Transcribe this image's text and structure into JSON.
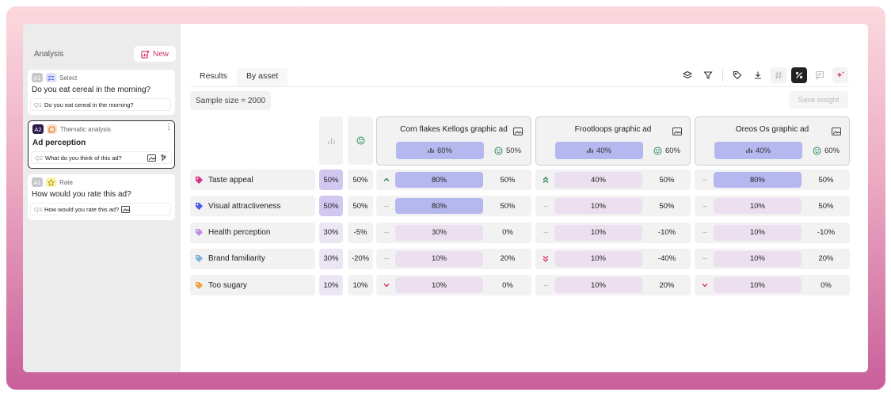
{
  "colors": {
    "accent": "#d6336c",
    "bar_high": "#b5b7ef",
    "bar_low": "#ece0f0",
    "base_high": "#d2c8ef",
    "base_low": "#ece5f3",
    "trend_up": "#2e8b57",
    "trend_down": "#d6336c"
  },
  "sidebar": {
    "title": "Analysis",
    "new_label": "New",
    "cards": [
      {
        "tag": "A1",
        "type": "Select",
        "question": "Do you eat cereal in the morning?",
        "q_num": "Q1",
        "sub": "Do you eat cereal in the morning?"
      },
      {
        "tag": "A2",
        "type": "Thematic analysis",
        "question": "Ad perception",
        "q_num": "Q2",
        "sub": "What do you think of this ad?"
      },
      {
        "tag": "A1",
        "type": "Rate",
        "question": "How would you rate this ad?",
        "q_num": "Q3",
        "sub": "How would you rate this ad?"
      }
    ]
  },
  "tabs": [
    "Results",
    "By asset"
  ],
  "active_tab": "By asset",
  "sample_size": "Sample size = 2000",
  "save_insight": "Save insight",
  "toolbar_icons": [
    "layers-icon",
    "filter-icon",
    "tag-icon",
    "download-icon",
    "hash-icon",
    "percent-icon",
    "comment-icon",
    "sparkle-icon"
  ],
  "assets": [
    {
      "name": "Corn flakes Kellogs graphic ad",
      "share": "60%",
      "sentiment": "50%"
    },
    {
      "name": "Frootloops graphic ad",
      "share": "40%",
      "sentiment": "60%"
    },
    {
      "name": "Oreos Os graphic ad",
      "share": "40%",
      "sentiment": "60%"
    }
  ],
  "rows": [
    {
      "label": "Taste appeal",
      "tag_color": "#d63384",
      "base": "50%",
      "base_high": true,
      "sentiment": "50%",
      "cells": [
        {
          "trend": "up",
          "value": "80%",
          "high": true,
          "sent": "50%"
        },
        {
          "trend": "double-up",
          "value": "40%",
          "high": false,
          "sent": "50%"
        },
        {
          "trend": "flat",
          "value": "80%",
          "high": true,
          "sent": "50%"
        }
      ]
    },
    {
      "label": "Visual attractiveness",
      "tag_color": "#4a5de8",
      "base": "50%",
      "base_high": true,
      "sentiment": "50%",
      "cells": [
        {
          "trend": "flat",
          "value": "80%",
          "high": true,
          "sent": "50%"
        },
        {
          "trend": "flat",
          "value": "10%",
          "high": false,
          "sent": "50%"
        },
        {
          "trend": "flat",
          "value": "10%",
          "high": false,
          "sent": "50%"
        }
      ]
    },
    {
      "label": "Health perception",
      "tag_color": "#c48ae0",
      "base": "30%",
      "base_high": false,
      "sentiment": "-5%",
      "cells": [
        {
          "trend": "flat",
          "value": "30%",
          "high": false,
          "sent": "0%"
        },
        {
          "trend": "flat",
          "value": "10%",
          "high": false,
          "sent": "-10%"
        },
        {
          "trend": "flat",
          "value": "10%",
          "high": false,
          "sent": "-10%"
        }
      ]
    },
    {
      "label": "Brand familiarity",
      "tag_color": "#7fb5d6",
      "base": "30%",
      "base_high": false,
      "sentiment": "-20%",
      "cells": [
        {
          "trend": "flat",
          "value": "10%",
          "high": false,
          "sent": "20%"
        },
        {
          "trend": "double-down",
          "value": "10%",
          "high": false,
          "sent": "-40%"
        },
        {
          "trend": "flat",
          "value": "10%",
          "high": false,
          "sent": "20%"
        }
      ]
    },
    {
      "label": "Too sugary",
      "tag_color": "#f0a040",
      "base": "10%",
      "base_high": false,
      "sentiment": "10%",
      "cells": [
        {
          "trend": "down",
          "value": "10%",
          "high": false,
          "sent": "0%"
        },
        {
          "trend": "flat",
          "value": "10%",
          "high": false,
          "sent": "20%"
        },
        {
          "trend": "down",
          "value": "10%",
          "high": false,
          "sent": "0%"
        }
      ]
    }
  ]
}
